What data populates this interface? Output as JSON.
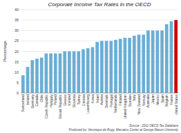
{
  "chart_data": {
    "type": "bar",
    "title": "Corporate Income Tax Rates in the OECD",
    "ylabel": "Percentage",
    "annotations": [
      "Source : 2011 OECD Tax Database",
      "Produced by: Veronique de Rugy, Mercatus Center at George Mason University"
    ],
    "categories": [
      "Switzerland",
      "Ireland",
      "Germany",
      "Canada",
      "Chile",
      "Czech Republic",
      "Hungary",
      "Poland",
      "Slovak Republic",
      "Greece",
      "Iceland",
      "Slovenia",
      "Turkey",
      "Estonia",
      "Luxembourg",
      "Korea",
      "Israel",
      "Austria",
      "Denmark",
      "Portugal",
      "Netherlands",
      "Finland",
      "United Kingdom",
      "Sweden",
      "Italy",
      "New Zealand",
      "Norway",
      "Australia",
      "Japan",
      "Mexico",
      "Spain",
      "Belgium",
      "France",
      "United States"
    ],
    "values": [
      8.5,
      12.5,
      15.8,
      16.5,
      17.0,
      19.0,
      19.0,
      19.0,
      19.0,
      20.0,
      20.0,
      20.0,
      20.0,
      21.0,
      21.5,
      22.0,
      24.5,
      25.0,
      25.0,
      25.0,
      25.5,
      26.0,
      26.5,
      26.5,
      27.5,
      28.0,
      28.0,
      30.0,
      30.0,
      30.0,
      30.0,
      33.0,
      34.4,
      35.0
    ],
    "colors": [
      "#6baed6",
      "#6baed6",
      "#6baed6",
      "#6baed6",
      "#6baed6",
      "#6baed6",
      "#6baed6",
      "#6baed6",
      "#6baed6",
      "#6baed6",
      "#6baed6",
      "#6baed6",
      "#6baed6",
      "#6baed6",
      "#6baed6",
      "#6baed6",
      "#6baed6",
      "#6baed6",
      "#6baed6",
      "#6baed6",
      "#6baed6",
      "#6baed6",
      "#6baed6",
      "#6baed6",
      "#6baed6",
      "#6baed6",
      "#6baed6",
      "#6baed6",
      "#6baed6",
      "#6baed6",
      "#6baed6",
      "#6baed6",
      "#6baed6",
      "#cc0000"
    ],
    "ylim": [
      0,
      40
    ],
    "yticks": [
      0,
      5,
      10,
      15,
      20,
      25,
      30,
      35,
      40
    ],
    "grid": true
  }
}
